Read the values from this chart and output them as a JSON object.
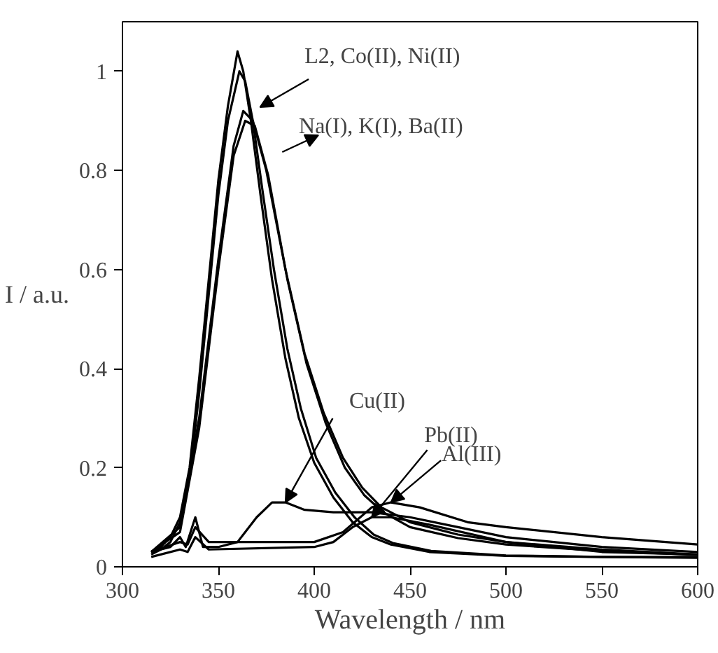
{
  "chart_data": {
    "type": "line",
    "xlabel": "Wavelength / nm",
    "ylabel": "I / a.u.",
    "xlim": [
      300,
      600
    ],
    "ylim": [
      0,
      1.1
    ],
    "xticks": [
      300,
      350,
      400,
      450,
      500,
      550,
      600
    ],
    "yticks": [
      0,
      0.2,
      0.4,
      0.6,
      0.8,
      1
    ],
    "grid": false,
    "marker": "none",
    "line_style": "solid",
    "series": [
      {
        "color": "#000000",
        "x": [
          315,
          320,
          325,
          330,
          335,
          340,
          345,
          350,
          355,
          360,
          363,
          367,
          372,
          378,
          385,
          392,
          400,
          410,
          420,
          430,
          440,
          460,
          500,
          550,
          600
        ],
        "values": [
          0.03,
          0.04,
          0.06,
          0.1,
          0.2,
          0.38,
          0.58,
          0.78,
          0.93,
          1.04,
          1.0,
          0.9,
          0.75,
          0.58,
          0.42,
          0.3,
          0.21,
          0.14,
          0.09,
          0.06,
          0.045,
          0.03,
          0.022,
          0.02,
          0.02
        ]
      },
      {
        "color": "#000000",
        "x": [
          315,
          320,
          325,
          330,
          335,
          340,
          345,
          350,
          355,
          361,
          364,
          368,
          373,
          379,
          386,
          393,
          401,
          411,
          421,
          431,
          441,
          461,
          500,
          550,
          600
        ],
        "values": [
          0.025,
          0.035,
          0.05,
          0.09,
          0.18,
          0.35,
          0.55,
          0.75,
          0.9,
          1.0,
          0.98,
          0.9,
          0.76,
          0.6,
          0.44,
          0.32,
          0.22,
          0.15,
          0.1,
          0.065,
          0.048,
          0.032,
          0.023,
          0.02,
          0.018
        ]
      },
      {
        "color": "#000000",
        "x": [
          315,
          330,
          340,
          350,
          358,
          363,
          368,
          375,
          385,
          395,
          405,
          415,
          425,
          435,
          450,
          475,
          500,
          550,
          600
        ],
        "values": [
          0.03,
          0.08,
          0.3,
          0.62,
          0.85,
          0.92,
          0.9,
          0.8,
          0.6,
          0.43,
          0.31,
          0.22,
          0.16,
          0.12,
          0.09,
          0.065,
          0.05,
          0.035,
          0.025
        ]
      },
      {
        "color": "#000000",
        "x": [
          315,
          330,
          340,
          350,
          358,
          364,
          369,
          376,
          386,
          396,
          406,
          416,
          426,
          436,
          450,
          475,
          500,
          550,
          600
        ],
        "values": [
          0.03,
          0.07,
          0.28,
          0.6,
          0.83,
          0.9,
          0.89,
          0.79,
          0.58,
          0.41,
          0.29,
          0.2,
          0.145,
          0.11,
          0.08,
          0.058,
          0.045,
          0.032,
          0.024
        ]
      },
      {
        "color": "#000000",
        "x": [
          315,
          325,
          330,
          333,
          338,
          342,
          350,
          360,
          370,
          378,
          385,
          395,
          410,
          430,
          450,
          475,
          500,
          550,
          600
        ],
        "values": [
          0.03,
          0.04,
          0.06,
          0.04,
          0.1,
          0.04,
          0.04,
          0.05,
          0.1,
          0.13,
          0.13,
          0.115,
          0.11,
          0.11,
          0.1,
          0.08,
          0.06,
          0.04,
          0.03
        ]
      },
      {
        "color": "#000000",
        "x": [
          315,
          330,
          334,
          338,
          345,
          400,
          410,
          420,
          430,
          440,
          460,
          500,
          550,
          600
        ],
        "values": [
          0.02,
          0.035,
          0.03,
          0.06,
          0.035,
          0.04,
          0.05,
          0.08,
          0.1,
          0.1,
          0.085,
          0.05,
          0.03,
          0.025
        ]
      },
      {
        "color": "#000000",
        "x": [
          315,
          330,
          334,
          338,
          345,
          400,
          415,
          430,
          440,
          455,
          480,
          500,
          550,
          600
        ],
        "values": [
          0.03,
          0.05,
          0.045,
          0.08,
          0.05,
          0.05,
          0.07,
          0.12,
          0.13,
          0.12,
          0.09,
          0.08,
          0.06,
          0.045
        ]
      }
    ],
    "annotations": [
      "L2, Co(II), Ni(II)",
      "Na(I), K(I), Ba(II)",
      {
        "text": "Cu(II)",
        "x": 385,
        "y": 0.13
      },
      {
        "text": "Pb(II)",
        "x": 430,
        "y": 0.1
      },
      {
        "text": "Al(III)",
        "x": 440,
        "y": 0.13
      }
    ]
  }
}
